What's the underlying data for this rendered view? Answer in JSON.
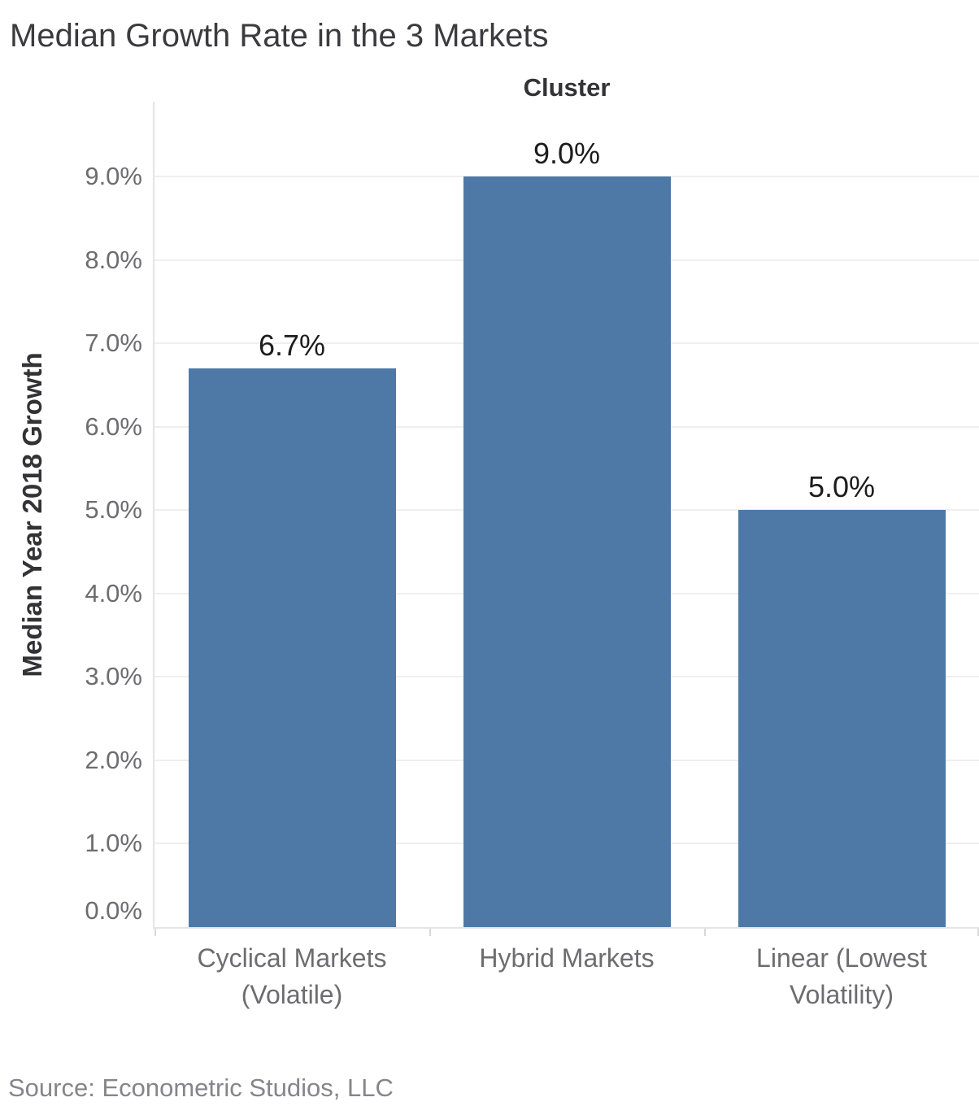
{
  "title": "Median Growth Rate in the 3 Markets",
  "column_header": "Cluster",
  "source": "Source: Econometric Studios, LLC",
  "colors": {
    "bar": "#4e79a7",
    "gridline": "#efefef",
    "axis_line": "#e4e4e6",
    "tick_label": "#6d6d71",
    "bar_label": "#1c1c1c",
    "title": "#3b3b3f",
    "source": "#85858b"
  },
  "chart_data": {
    "type": "bar",
    "title": "Median Growth Rate in the 3 Markets",
    "column_field_label": "Cluster",
    "categories": [
      "Cyclical Markets (Volatile)",
      "Hybrid Markets",
      "Linear (Lowest Volatility)"
    ],
    "values": [
      6.7,
      9.0,
      5.0
    ],
    "bar_labels": [
      "6.7%",
      "9.0%",
      "5.0%"
    ],
    "xlabel": "Cluster",
    "ylabel": "Median Year 2018 Growth",
    "ylim": [
      0,
      9.9
    ],
    "yticks": [
      0,
      1,
      2,
      3,
      4,
      5,
      6,
      7,
      8,
      9
    ],
    "ytick_labels": [
      "0.0%",
      "1.0%",
      "2.0%",
      "3.0%",
      "4.0%",
      "5.0%",
      "6.0%",
      "7.0%",
      "8.0%",
      "9.0%"
    ],
    "grid": true,
    "legend": "none",
    "bar_color": "#4e79a7"
  }
}
